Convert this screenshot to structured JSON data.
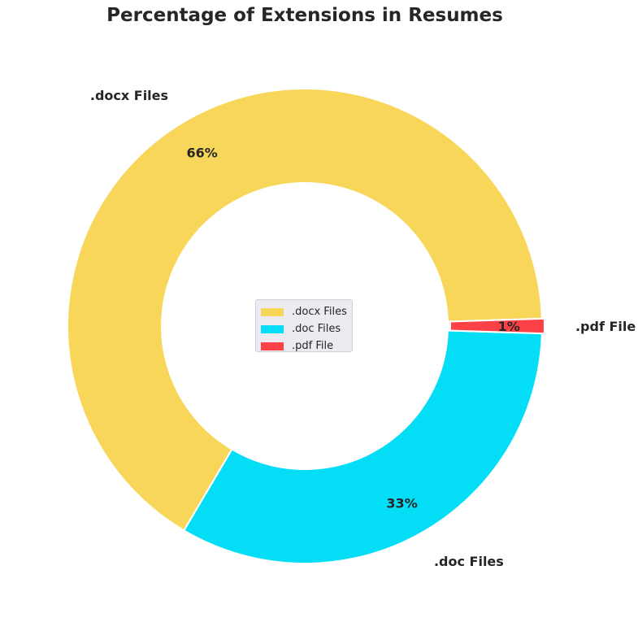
{
  "chart_data": {
    "type": "pie",
    "title": "Percentage of Extensions in Resumes",
    "donut": true,
    "legend_position": "center",
    "slices": [
      {
        "name": ".docx Files",
        "value": 66,
        "percent_label": "66%",
        "color": "#f7d65a"
      },
      {
        "name": ".doc Files",
        "value": 33,
        "percent_label": "33%",
        "color": "#03ddf5"
      },
      {
        "name": ".pdf File",
        "value": 1,
        "percent_label": "1%",
        "color": "#fc4147",
        "exploded": true
      }
    ]
  }
}
